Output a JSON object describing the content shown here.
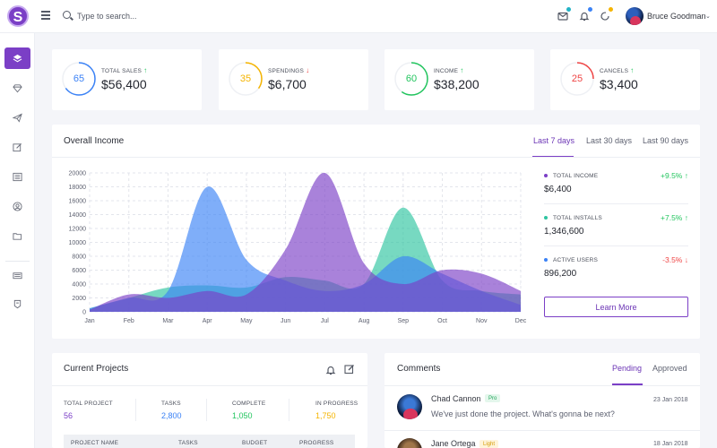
{
  "header": {
    "logo_letter": "S",
    "search_placeholder": "Type to search...",
    "user_name": "Bruce Goodman",
    "notification_dot_colors": [
      "#22b3c6",
      "#3b82f6",
      "#f5b400"
    ]
  },
  "sidebar": {
    "items": [
      {
        "icon": "layers-icon",
        "active": true
      },
      {
        "icon": "diamond-icon",
        "active": false
      },
      {
        "icon": "paper-plane-icon",
        "active": false
      },
      {
        "icon": "edit-icon",
        "active": false
      },
      {
        "icon": "list-icon",
        "active": false
      },
      {
        "icon": "user-circle-icon",
        "active": false
      },
      {
        "icon": "folder-icon",
        "active": false
      },
      {
        "icon": "keyboard-icon",
        "active": false
      },
      {
        "icon": "badge-icon",
        "active": false
      }
    ]
  },
  "stats": [
    {
      "percent": "65",
      "label": "TOTAL SALES",
      "trend": "up",
      "value": "$56,400",
      "color": "#3b82f6"
    },
    {
      "percent": "35",
      "label": "SPENDINGS",
      "trend": "down",
      "value": "$6,700",
      "color": "#f5b400"
    },
    {
      "percent": "60",
      "label": "INCOME",
      "trend": "up",
      "value": "$38,200",
      "color": "#22c55e"
    },
    {
      "percent": "25",
      "label": "CANCELS",
      "trend": "up",
      "value": "$3,400",
      "color": "#ef4444"
    }
  ],
  "overall_income": {
    "title": "Overall Income",
    "tabs": [
      "Last 7 days",
      "Last 30 days",
      "Last 90 days"
    ],
    "active_tab": 0,
    "summary": [
      {
        "label": "TOTAL INCOME",
        "value": "$6,400",
        "change": "+9.5%",
        "trend": "up",
        "color": "#7b3fc6"
      },
      {
        "label": "TOTAL INSTALLS",
        "value": "1,346,600",
        "change": "+7.5%",
        "trend": "up",
        "color": "#2ec4a0"
      },
      {
        "label": "ACTIVE USERS",
        "value": "896,200",
        "change": "-3.5%",
        "trend": "down",
        "color": "#3b82f6"
      }
    ],
    "learn_more": "Learn More"
  },
  "chart_data": {
    "type": "area",
    "categories": [
      "Jan",
      "Feb",
      "Mar",
      "Apr",
      "May",
      "Jun",
      "Jul",
      "Aug",
      "Sep",
      "Oct",
      "Nov",
      "Dec"
    ],
    "ylim": [
      0,
      20000
    ],
    "yticks": [
      "0",
      "2000",
      "4000",
      "6000",
      "8000",
      "10000",
      "12000",
      "14000",
      "16000",
      "18000",
      "20000"
    ],
    "grid": true,
    "series": [
      {
        "color": "#2ec4a0",
        "values": [
          500,
          2000,
          3500,
          3800,
          3500,
          5000,
          4500,
          4000,
          15000,
          4500,
          3000,
          2500
        ]
      },
      {
        "color": "#3b82f6",
        "values": [
          500,
          2000,
          3000,
          18000,
          7500,
          4500,
          3000,
          4000,
          8000,
          5500,
          3000,
          1000
        ]
      },
      {
        "color": "#7b3fc6",
        "values": [
          300,
          2500,
          2000,
          3000,
          2500,
          9000,
          20000,
          7000,
          4000,
          6000,
          5500,
          3000
        ]
      }
    ]
  },
  "projects": {
    "title": "Current Projects",
    "summary": [
      {
        "label": "TOTAL PROJECT",
        "value": "56",
        "color": "#7b3fc6"
      },
      {
        "label": "TASKS",
        "value": "2,800",
        "color": "#3b82f6"
      },
      {
        "label": "COMPLETE",
        "value": "1,050",
        "color": "#22c55e"
      },
      {
        "label": "IN PROGRESS",
        "value": "1,750",
        "color": "#f5b400"
      }
    ],
    "table_headers": [
      "PROJECT NAME",
      "TASKS",
      "BUDGET",
      "PROGRESS"
    ]
  },
  "comments": {
    "title": "Comments",
    "tabs": [
      "Pending",
      "Approved"
    ],
    "active_tab": 0,
    "items": [
      {
        "name": "Chad Cannon",
        "badge": "Pro",
        "text": "We've just done the project. What's gonna be next?",
        "date": "23 Jan 2018"
      },
      {
        "name": "Jane Ortega",
        "badge": "Light",
        "text": "",
        "date": "18 Jan 2018"
      }
    ]
  }
}
